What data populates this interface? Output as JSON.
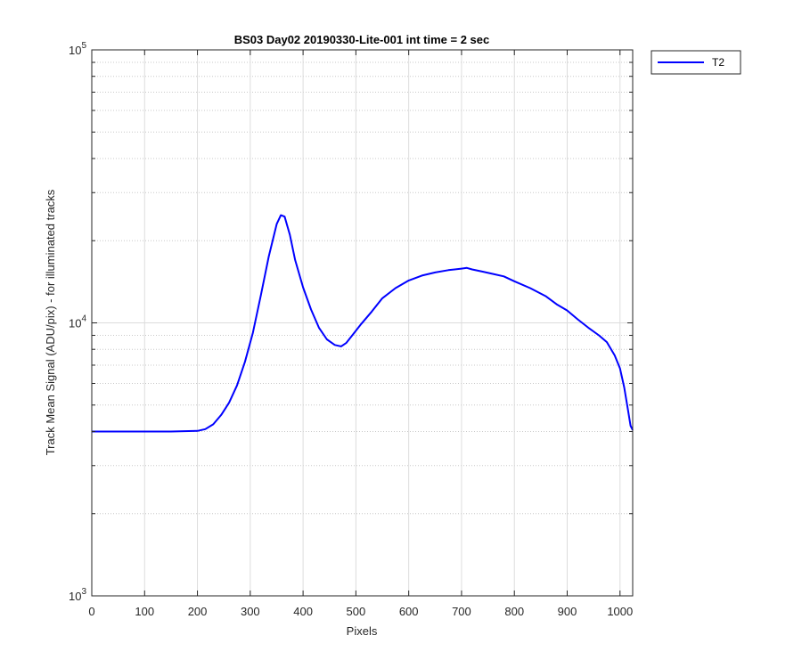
{
  "chart_data": {
    "type": "line",
    "title": "BS03 Day02 20190330-Lite-001 int time = 2 sec",
    "xlabel": "Pixels",
    "ylabel": "Track Mean Signal (ADU/pix) - for illuminated tracks",
    "xlim": [
      0,
      1024
    ],
    "ylim": [
      1000,
      100000
    ],
    "yscale": "log",
    "grid": true,
    "minor_grid": true,
    "legend_position": "outside-top-right",
    "x_ticks": [
      "0",
      "100",
      "200",
      "300",
      "400",
      "500",
      "600",
      "700",
      "800",
      "900",
      "1000"
    ],
    "y_ticks": [
      {
        "base": "10",
        "exp": "3",
        "value": 1000
      },
      {
        "base": "10",
        "exp": "4",
        "value": 10000
      },
      {
        "base": "10",
        "exp": "5",
        "value": 100000
      }
    ],
    "series": [
      {
        "name": "T2",
        "color": "#0000ff",
        "x": [
          0,
          50,
          100,
          150,
          200,
          215,
          230,
          245,
          260,
          275,
          290,
          305,
          320,
          335,
          350,
          358,
          365,
          375,
          385,
          400,
          415,
          430,
          445,
          460,
          472,
          482,
          495,
          510,
          530,
          550,
          575,
          600,
          625,
          650,
          675,
          700,
          710,
          720,
          740,
          760,
          780,
          800,
          830,
          860,
          880,
          900,
          920,
          940,
          960,
          975,
          990,
          1000,
          1008,
          1015,
          1020,
          1024
        ],
        "y": [
          4000,
          4000,
          4000,
          4000,
          4020,
          4080,
          4250,
          4600,
          5100,
          5900,
          7200,
          9200,
          12600,
          17500,
          23000,
          24800,
          24500,
          21000,
          17000,
          13500,
          11200,
          9600,
          8700,
          8300,
          8200,
          8450,
          9100,
          9900,
          11000,
          12300,
          13400,
          14300,
          14900,
          15300,
          15600,
          15800,
          15900,
          15700,
          15400,
          15100,
          14800,
          14200,
          13400,
          12500,
          11700,
          11100,
          10300,
          9600,
          9000,
          8500,
          7600,
          6800,
          5800,
          4800,
          4200,
          4050
        ]
      }
    ]
  }
}
